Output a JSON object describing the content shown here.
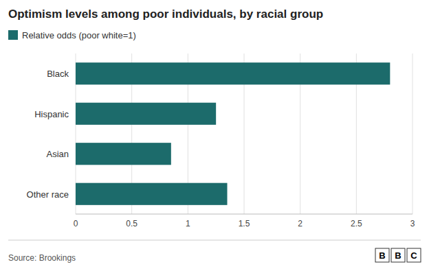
{
  "chart_data": {
    "type": "bar",
    "orientation": "horizontal",
    "title": "Optimism levels among poor individuals, by racial group",
    "categories": [
      "Other race",
      "Asian",
      "Hispanic",
      "Black"
    ],
    "series": [
      {
        "name": "Relative odds (poor white=1)",
        "color": "#1c6b6b",
        "values": [
          1.35,
          0.85,
          1.25,
          2.8
        ]
      }
    ],
    "xlim": [
      0,
      3.0
    ],
    "xticks": [
      0,
      0.5,
      1,
      1.5,
      2,
      2.5,
      3
    ],
    "grid": true,
    "legend": "top-left",
    "annotations": [
      "Source: Brookings",
      "B",
      "B",
      "C"
    ]
  }
}
